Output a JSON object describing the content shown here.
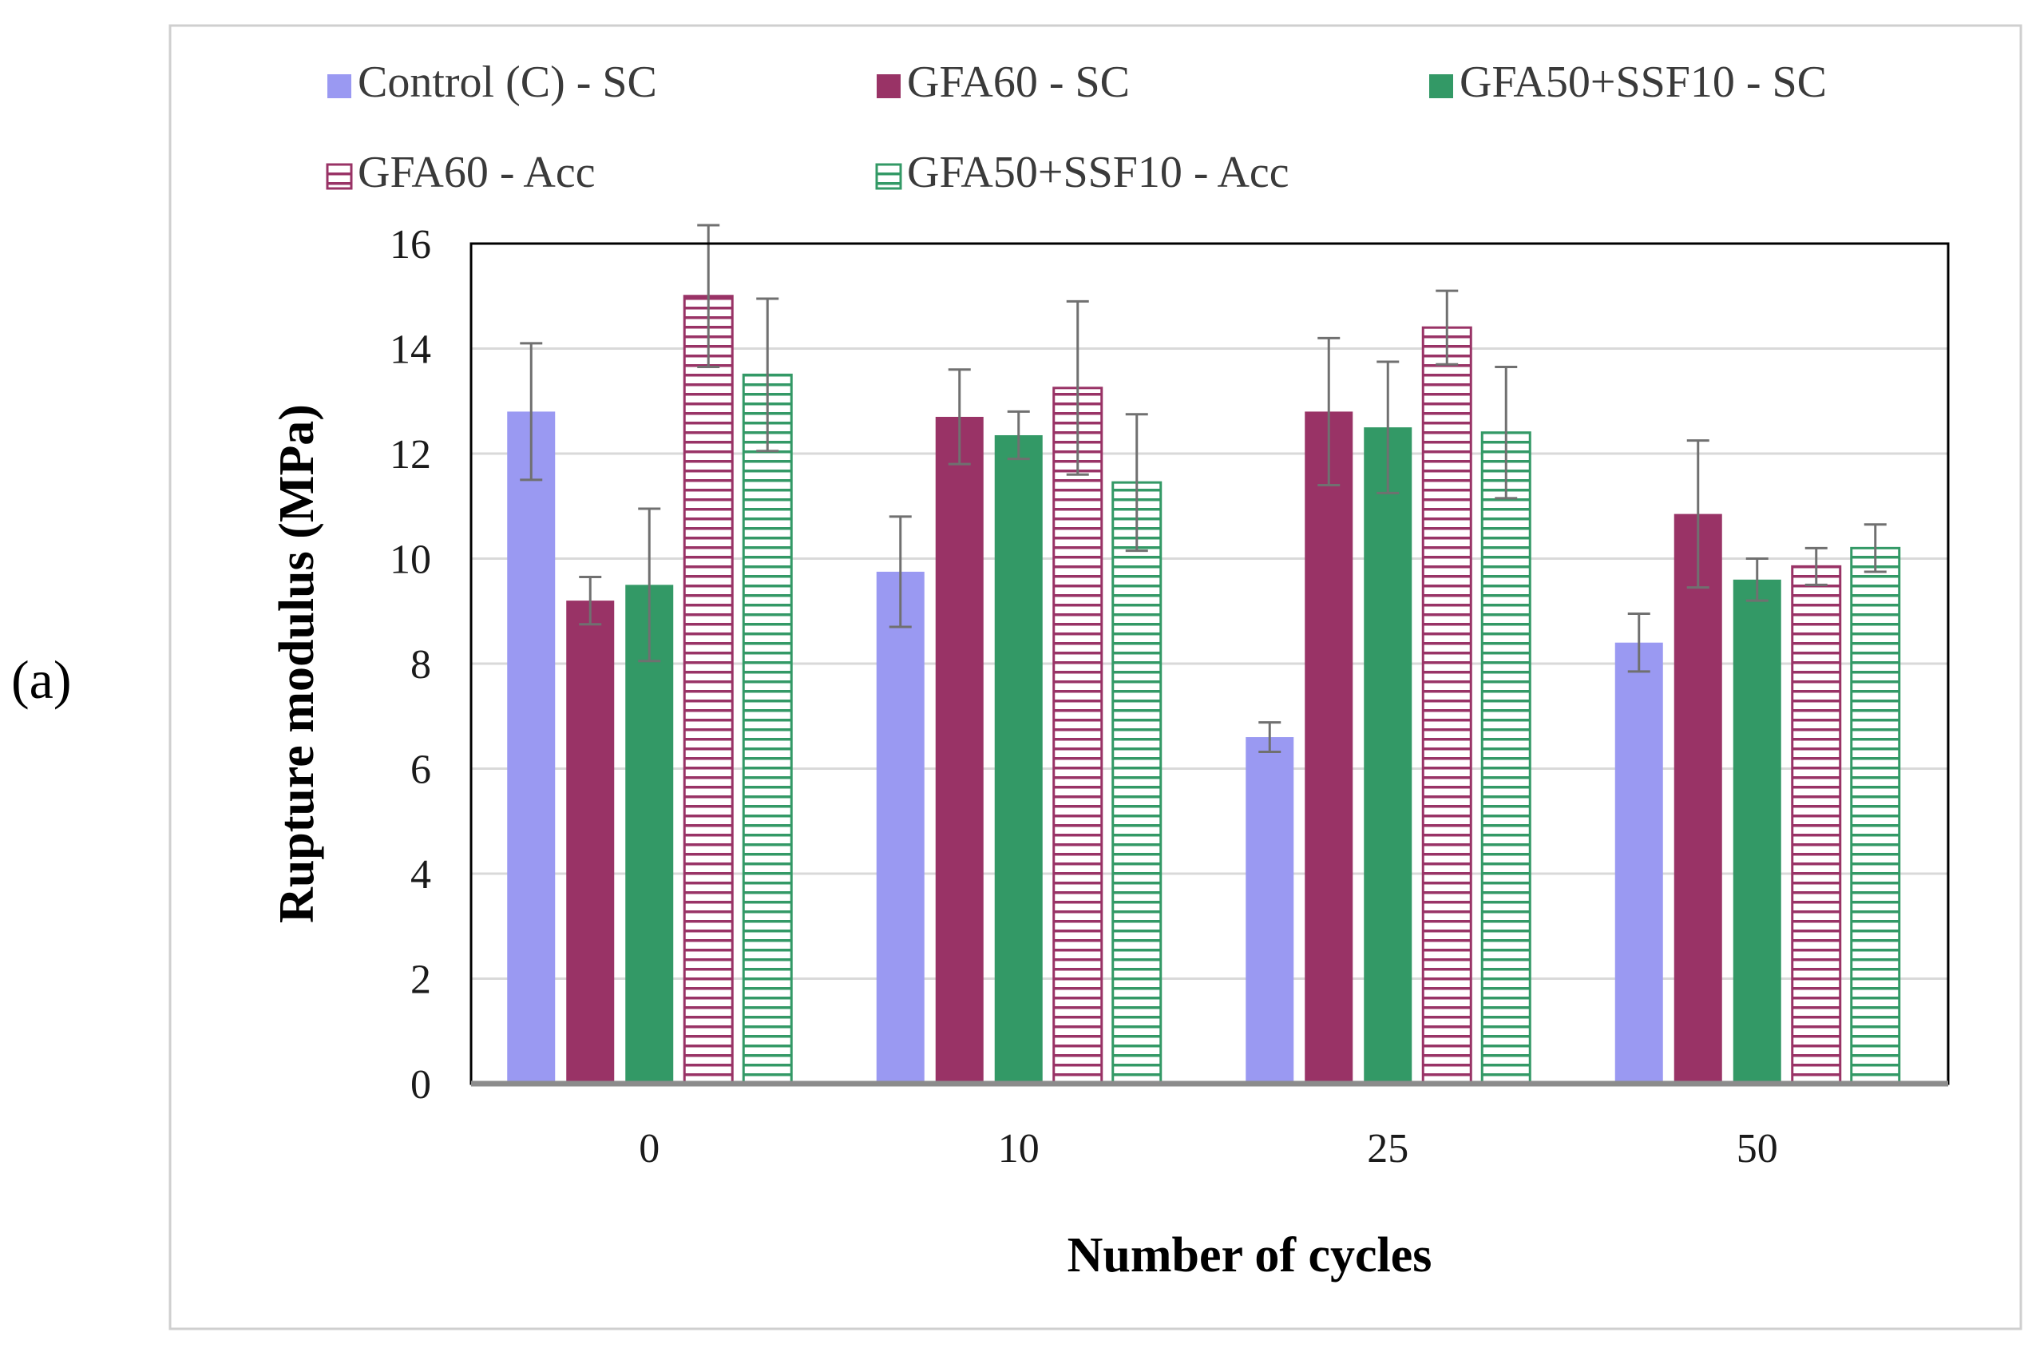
{
  "panel_label": "(a)",
  "chart_data": {
    "type": "bar",
    "title": "",
    "xlabel": "Number  of cycles",
    "ylabel": "Rupture  modulus  (MPa)",
    "categories": [
      "0",
      "10",
      "25",
      "50"
    ],
    "ylim": [
      0,
      16
    ],
    "yticks": [
      0,
      2,
      4,
      6,
      8,
      10,
      12,
      14,
      16
    ],
    "grid": true,
    "legend_position": "top",
    "series": [
      {
        "name": "Control (C) - SC",
        "color": "#9a99f2",
        "pattern": "solid",
        "values": [
          12.8,
          9.75,
          6.6,
          8.4
        ],
        "errors": [
          1.3,
          1.05,
          0.28,
          0.55
        ]
      },
      {
        "name": "GFA60 - SC",
        "color": "#993366",
        "pattern": "solid",
        "values": [
          9.2,
          12.7,
          12.8,
          10.85
        ],
        "errors": [
          0.45,
          0.9,
          1.4,
          1.4
        ]
      },
      {
        "name": "GFA50+SSF10 - SC",
        "color": "#339966",
        "pattern": "solid",
        "values": [
          9.5,
          12.35,
          12.5,
          9.6
        ],
        "errors": [
          1.45,
          0.45,
          1.25,
          0.4
        ]
      },
      {
        "name": "GFA60 - Acc",
        "color": "#993366",
        "pattern": "horizontal-stripes",
        "values": [
          15.0,
          13.25,
          14.4,
          9.85
        ],
        "errors": [
          1.35,
          1.65,
          0.7,
          0.35
        ]
      },
      {
        "name": "GFA50+SSF10 - Acc",
        "color": "#339966",
        "pattern": "horizontal-stripes",
        "values": [
          13.5,
          11.45,
          12.4,
          10.2
        ],
        "errors": [
          1.45,
          1.3,
          1.25,
          0.45
        ]
      }
    ]
  }
}
